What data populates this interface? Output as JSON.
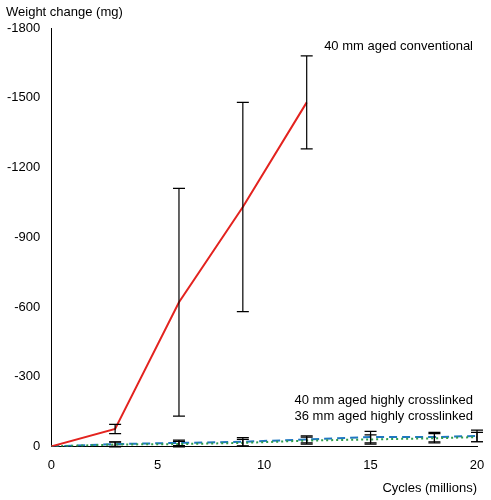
{
  "chart_data": {
    "type": "line",
    "x_label": "Cycles (millions)",
    "y_label": "Weight change (mg)",
    "xlim": [
      0,
      20
    ],
    "xticks": [
      0,
      5,
      10,
      15,
      20
    ],
    "ylim": [
      0,
      -1800
    ],
    "yticks": [
      0,
      -300,
      -600,
      -900,
      -1200,
      -1500,
      -1800
    ],
    "grid": false,
    "series": [
      {
        "name": "40 mm aged conventional",
        "color": "#e3231f",
        "line_style": "solid",
        "marker": "none",
        "x": [
          0,
          3,
          6,
          9,
          12
        ],
        "values": [
          0,
          -75,
          -620,
          -1030,
          -1480
        ],
        "errors": [
          null,
          20,
          490,
          450,
          200
        ]
      },
      {
        "name": "40 mm aged highly crosslinked",
        "color": "#2e9e4a",
        "line_style": "dotted",
        "marker": "none",
        "x": [
          0,
          3,
          6,
          9,
          12,
          15,
          18,
          20
        ],
        "values": [
          0,
          -8,
          -10,
          -15,
          -25,
          -30,
          -35,
          -40
        ],
        "errors": [
          null,
          10,
          12,
          15,
          15,
          20,
          20,
          20
        ]
      },
      {
        "name": "36 mm aged highly crosslinked",
        "color": "#1f78c1",
        "line_style": "dashed",
        "marker": "none",
        "x": [
          0,
          3,
          6,
          9,
          12,
          15,
          18,
          20
        ],
        "values": [
          0,
          -10,
          -15,
          -20,
          -30,
          -40,
          -40,
          -45
        ],
        "errors": [
          null,
          10,
          12,
          18,
          15,
          25,
          20,
          25
        ]
      }
    ]
  }
}
